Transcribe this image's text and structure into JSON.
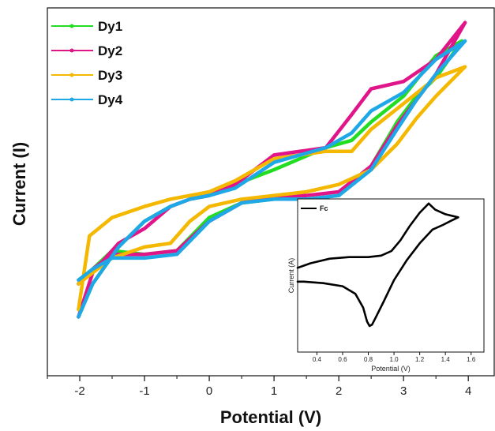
{
  "chart_data": [
    {
      "type": "line",
      "xlabel": "Potential (V)",
      "ylabel": "Current (I)",
      "xlim": [
        -2.5,
        4.4
      ],
      "ylim": [
        0,
        1
      ],
      "xticks": [
        -2,
        -1,
        0,
        1,
        2,
        3,
        4
      ],
      "xtick_labels": [
        "-2",
        "-1",
        "0",
        "1",
        "2",
        "3",
        "4"
      ],
      "yticks_shown": false,
      "legend_position": "top-left",
      "series": [
        {
          "name": "Dy1",
          "color": "#22dd22",
          "x": [
            -2.02,
            -1.8,
            -1.5,
            -1.0,
            -0.5,
            0.0,
            0.5,
            1.0,
            1.5,
            2.0,
            2.5,
            2.9,
            3.2,
            3.5,
            3.9,
            3.5,
            3.0,
            2.5,
            2.2,
            1.8,
            1.0,
            0.4,
            0.0,
            -0.3,
            -0.6,
            -1.0,
            -1.4,
            -1.8,
            -2.02
          ],
          "y": [
            0.25,
            0.29,
            0.34,
            0.33,
            0.34,
            0.43,
            0.47,
            0.48,
            0.48,
            0.49,
            0.57,
            0.69,
            0.76,
            0.81,
            0.91,
            0.87,
            0.76,
            0.69,
            0.64,
            0.62,
            0.56,
            0.52,
            0.49,
            0.48,
            0.46,
            0.42,
            0.35,
            0.25,
            0.16
          ]
        },
        {
          "name": "Dy2",
          "color": "#e0158a",
          "x": [
            -2.02,
            -1.8,
            -1.5,
            -1.0,
            -0.5,
            0.0,
            0.5,
            1.0,
            1.5,
            2.0,
            2.5,
            2.9,
            3.2,
            3.5,
            3.95,
            3.5,
            3.0,
            2.5,
            2.2,
            1.8,
            1.0,
            0.4,
            0.0,
            -0.3,
            -0.6,
            -1.0,
            -1.4,
            -1.8,
            -2.02
          ],
          "y": [
            0.25,
            0.29,
            0.33,
            0.33,
            0.34,
            0.42,
            0.47,
            0.49,
            0.49,
            0.5,
            0.57,
            0.68,
            0.75,
            0.82,
            0.96,
            0.86,
            0.8,
            0.78,
            0.71,
            0.62,
            0.6,
            0.52,
            0.49,
            0.48,
            0.46,
            0.4,
            0.36,
            0.28,
            0.16
          ]
        },
        {
          "name": "Dy3",
          "color": "#f5b800",
          "x": [
            -2.02,
            -1.8,
            -1.5,
            -1.0,
            -0.6,
            -0.3,
            0.0,
            0.5,
            1.0,
            1.5,
            2.0,
            2.5,
            2.9,
            3.2,
            3.5,
            3.95,
            3.5,
            3.0,
            2.5,
            2.2,
            1.8,
            1.0,
            0.4,
            0.0,
            -0.3,
            -0.6,
            -1.0,
            -1.5,
            -1.85,
            -2.02
          ],
          "y": [
            0.25,
            0.28,
            0.32,
            0.35,
            0.36,
            0.42,
            0.46,
            0.48,
            0.49,
            0.5,
            0.52,
            0.56,
            0.63,
            0.7,
            0.76,
            0.84,
            0.81,
            0.74,
            0.67,
            0.61,
            0.61,
            0.59,
            0.53,
            0.5,
            0.49,
            0.48,
            0.46,
            0.43,
            0.38,
            0.18
          ]
        },
        {
          "name": "Dy4",
          "color": "#1ea8e8",
          "x": [
            -2.02,
            -1.8,
            -1.5,
            -1.0,
            -0.5,
            0.0,
            0.5,
            1.0,
            1.5,
            2.0,
            2.5,
            2.9,
            3.2,
            3.5,
            3.95,
            3.5,
            3.0,
            2.5,
            2.2,
            1.8,
            1.0,
            0.4,
            0.0,
            -0.3,
            -0.6,
            -1.0,
            -1.4,
            -1.8,
            -2.02
          ],
          "y": [
            0.26,
            0.29,
            0.32,
            0.32,
            0.33,
            0.42,
            0.47,
            0.48,
            0.48,
            0.49,
            0.56,
            0.67,
            0.75,
            0.82,
            0.91,
            0.86,
            0.77,
            0.72,
            0.66,
            0.62,
            0.58,
            0.51,
            0.49,
            0.48,
            0.46,
            0.42,
            0.35,
            0.25,
            0.16
          ]
        }
      ]
    },
    {
      "type": "line",
      "inset": true,
      "xlabel": "Potential (V)",
      "ylabel": "Current (A)",
      "xlim": [
        0.25,
        1.7
      ],
      "ylim": [
        0,
        1
      ],
      "xticks": [
        0.4,
        0.6,
        0.8,
        1.0,
        1.2,
        1.4,
        1.6
      ],
      "xtick_labels": [
        "0.4",
        "0.6",
        "0.8",
        "1.0",
        "1.2",
        "1.4",
        "1.6"
      ],
      "series": [
        {
          "name": "Fc",
          "color": "#000000",
          "x": [
            0.25,
            0.35,
            0.5,
            0.65,
            0.8,
            0.9,
            0.98,
            1.05,
            1.12,
            1.2,
            1.27,
            1.32,
            1.4,
            1.5,
            1.45,
            1.38,
            1.3,
            1.2,
            1.1,
            1.0,
            0.92,
            0.86,
            0.83,
            0.81,
            0.79,
            0.76,
            0.7,
            0.6,
            0.45,
            0.3,
            0.25
          ],
          "y": [
            0.55,
            0.58,
            0.61,
            0.62,
            0.62,
            0.63,
            0.66,
            0.73,
            0.82,
            0.91,
            0.97,
            0.93,
            0.9,
            0.88,
            0.86,
            0.83,
            0.8,
            0.71,
            0.6,
            0.47,
            0.33,
            0.23,
            0.18,
            0.17,
            0.2,
            0.29,
            0.38,
            0.43,
            0.45,
            0.46,
            0.46
          ]
        }
      ]
    }
  ]
}
